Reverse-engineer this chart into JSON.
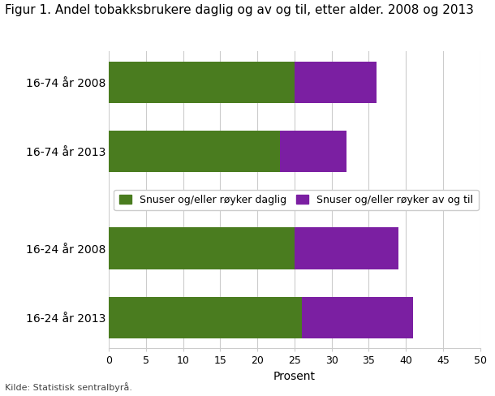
{
  "title": "Figur 1. Andel tobakksbrukere daglig og av og til, etter alder. 2008 og 2013",
  "categories": [
    "16-74 år 2008",
    "16-74 år 2013",
    "16-24 år 2008",
    "16-24 år 2013"
  ],
  "green_values": [
    25,
    23,
    25,
    26
  ],
  "purple_values": [
    11,
    9,
    14,
    15
  ],
  "green_color": "#4a7c1f",
  "purple_color": "#7b1fa2",
  "xlabel": "Prosent",
  "xlim": [
    0,
    50
  ],
  "xticks": [
    0,
    5,
    10,
    15,
    20,
    25,
    30,
    35,
    40,
    45,
    50
  ],
  "legend_labels": [
    "Snuser og/eller røyker daglig",
    "Snuser og/eller røyker av og til"
  ],
  "source_text": "Kilde: Statistisk sentralbyrå.",
  "title_fontsize": 11,
  "label_fontsize": 10,
  "tick_fontsize": 9,
  "background_color": "#ffffff",
  "grid_color": "#cccccc"
}
